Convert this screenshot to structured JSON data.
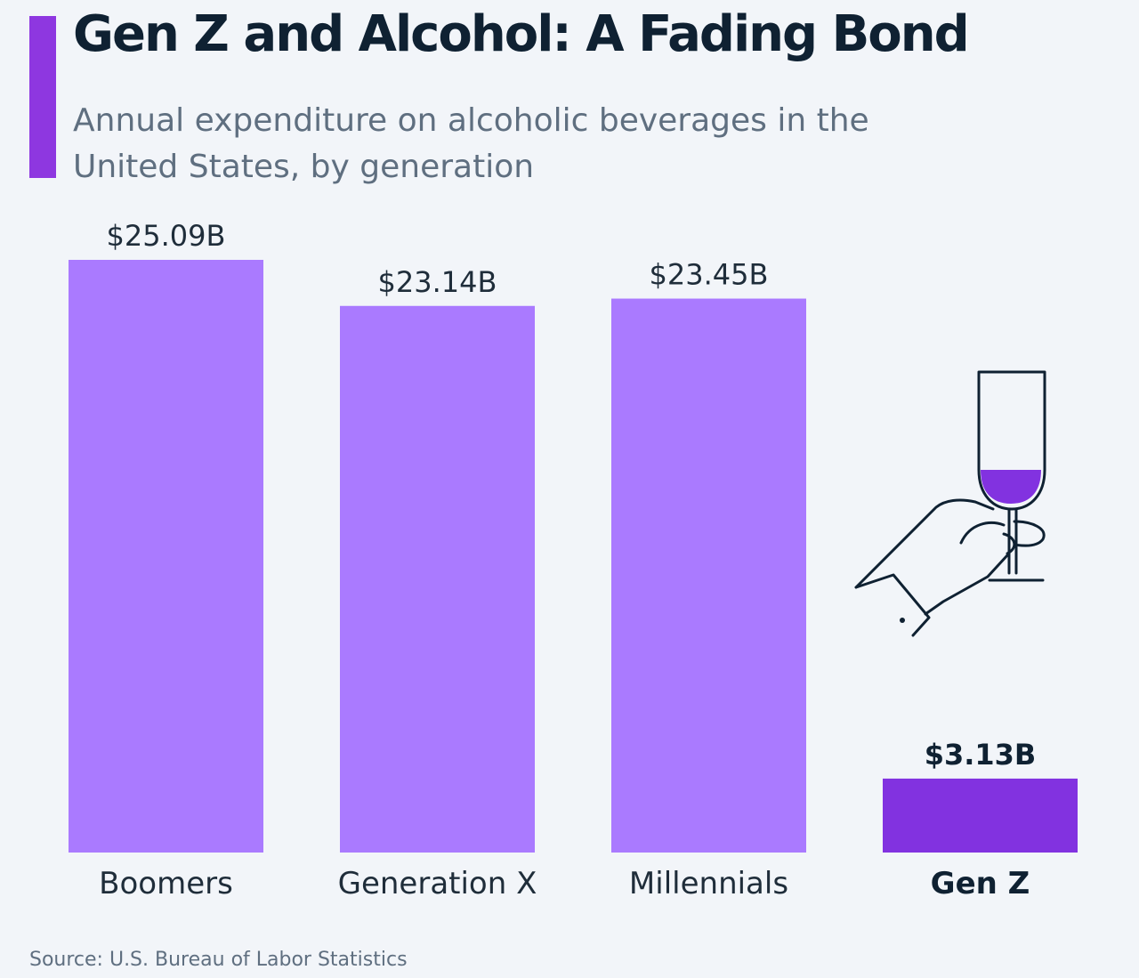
{
  "title": "Gen Z and Alcohol: A Fading Bond",
  "subtitle": "Annual expenditure on alcoholic beverages in the United States, by generation",
  "source": "Source: U.S. Bureau of Labor Statistics",
  "colors": {
    "accent": "#8e37e0",
    "bar": "#aa7aff",
    "highlight": "#8232e0",
    "text": "#0f2132",
    "muted": "#5f6f80"
  },
  "icon": "hand-holding-wine-glass-icon",
  "chart_data": {
    "type": "bar",
    "categories": [
      "Boomers",
      "Generation X",
      "Millennials",
      "Gen Z"
    ],
    "values": [
      25.09,
      23.14,
      23.45,
      3.13
    ],
    "value_labels": [
      "$25.09B",
      "$23.14B",
      "$23.45B",
      "$3.13B"
    ],
    "highlight": "Gen Z",
    "unit": "billion USD",
    "ylim": [
      0,
      25.09
    ],
    "grid": false,
    "legend": "none"
  }
}
